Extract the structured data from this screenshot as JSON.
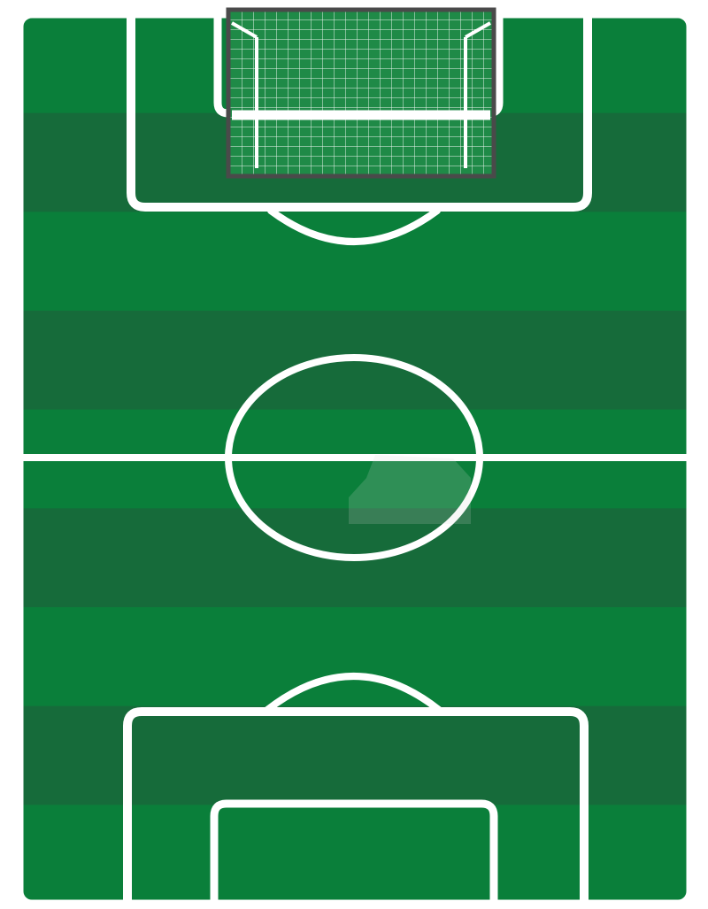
{
  "colors": {
    "grass_light": "#0a7f3a",
    "grass_dark": "#166b3a",
    "line": "#ffffff",
    "goal_frame": "#4a4a4a",
    "goal_net_bg": "#1f8a47"
  },
  "scene": {
    "view": "soccer-pitch-top-down",
    "goal_position": "top",
    "stripes": [
      "light",
      "dark",
      "light",
      "dark",
      "light",
      "dark",
      "light",
      "dark",
      "light"
    ]
  }
}
